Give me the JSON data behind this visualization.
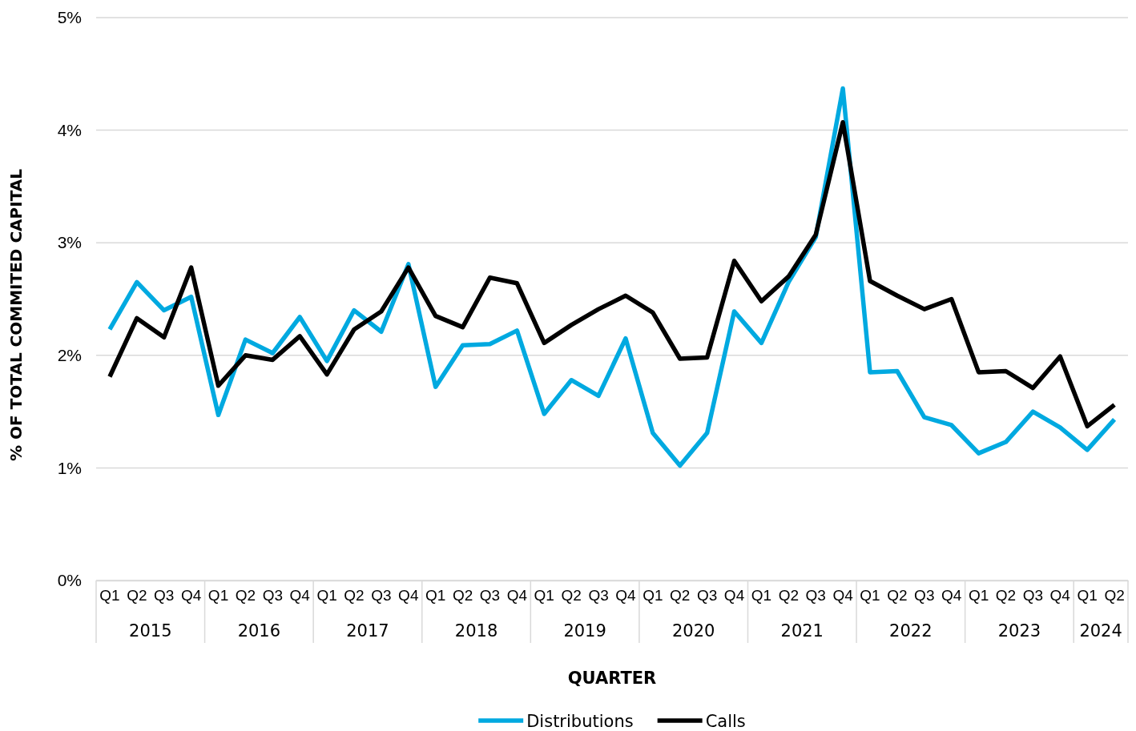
{
  "chart_data": {
    "type": "line",
    "xlabel": "QUARTER",
    "ylabel": "% OF TOTAL COMMITED CAPITAL",
    "categories": [
      "Q1",
      "Q2",
      "Q3",
      "Q4",
      "Q1",
      "Q2",
      "Q3",
      "Q4",
      "Q1",
      "Q2",
      "Q3",
      "Q4",
      "Q1",
      "Q2",
      "Q3",
      "Q4",
      "Q1",
      "Q2",
      "Q3",
      "Q4",
      "Q1",
      "Q2",
      "Q3",
      "Q4",
      "Q1",
      "Q2",
      "Q3",
      "Q4",
      "Q1",
      "Q2",
      "Q3",
      "Q4",
      "Q1",
      "Q2",
      "Q3",
      "Q4",
      "Q1",
      "Q2"
    ],
    "annotations": [
      "2015",
      "2016",
      "2017",
      "2018",
      "2019",
      "2020",
      "2021",
      "2022",
      "2023",
      "2024"
    ],
    "series": [
      {
        "name": "Distributions",
        "color": "#00a9e0",
        "values": [
          2.23,
          2.65,
          2.4,
          2.52,
          1.47,
          2.14,
          2.02,
          2.34,
          1.95,
          2.4,
          2.21,
          2.81,
          1.72,
          2.09,
          2.1,
          2.22,
          1.48,
          1.78,
          1.64,
          2.15,
          1.31,
          1.02,
          1.31,
          2.39,
          2.11,
          2.65,
          3.05,
          4.37,
          1.85,
          1.86,
          1.45,
          1.38,
          1.13,
          1.23,
          1.5,
          1.36,
          1.16,
          1.43
        ]
      },
      {
        "name": "Calls",
        "color": "#000000",
        "values": [
          1.81,
          2.33,
          2.16,
          2.78,
          1.73,
          2.0,
          1.96,
          2.17,
          1.83,
          2.23,
          2.39,
          2.78,
          2.35,
          2.25,
          2.69,
          2.64,
          2.11,
          2.27,
          2.41,
          2.53,
          2.38,
          1.97,
          1.98,
          2.84,
          2.48,
          2.7,
          3.07,
          4.07,
          2.66,
          2.53,
          2.41,
          2.5,
          1.85,
          1.86,
          1.71,
          1.99,
          1.37,
          1.56
        ]
      }
    ],
    "ylim": [
      0,
      5
    ],
    "yticks": [
      {
        "value": 0,
        "label": "0%"
      },
      {
        "value": 1,
        "label": "1%"
      },
      {
        "value": 2,
        "label": "2%"
      },
      {
        "value": 3,
        "label": "3%"
      },
      {
        "value": 4,
        "label": "4%"
      },
      {
        "value": 5,
        "label": "5%"
      }
    ],
    "grid": "y",
    "legend": "bottom",
    "marker": "none",
    "line_style": "solid"
  }
}
